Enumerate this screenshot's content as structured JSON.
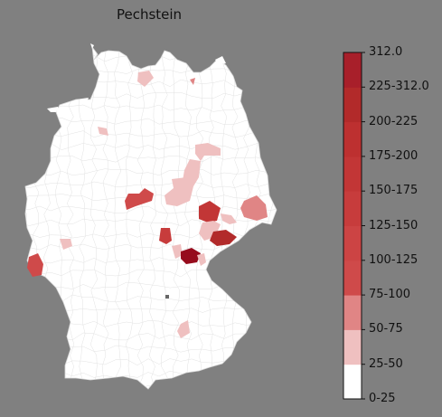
{
  "title": "Pechstein",
  "colorbar": {
    "bins": [
      {
        "label": "0-25",
        "color": "#ffffff"
      },
      {
        "label": "25-50",
        "color": "#efc0c0"
      },
      {
        "label": "50-75",
        "color": "#e08585"
      },
      {
        "label": "75-100",
        "color": "#cf4a4a"
      },
      {
        "label": "100-125",
        "color": "#cc4444"
      },
      {
        "label": "125-150",
        "color": "#c73c3c"
      },
      {
        "label": "150-175",
        "color": "#c23636"
      },
      {
        "label": "175-200",
        "color": "#bd3030"
      },
      {
        "label": "200-225",
        "color": "#b22a2a"
      },
      {
        "label": "225-312.0",
        "color": "#a81f2a"
      },
      {
        "label": "312.0",
        "color": "#960b1c"
      }
    ]
  },
  "map": {
    "base_color": "#ffffff",
    "border_color": "#cfcfcf",
    "background": "#808080"
  }
}
